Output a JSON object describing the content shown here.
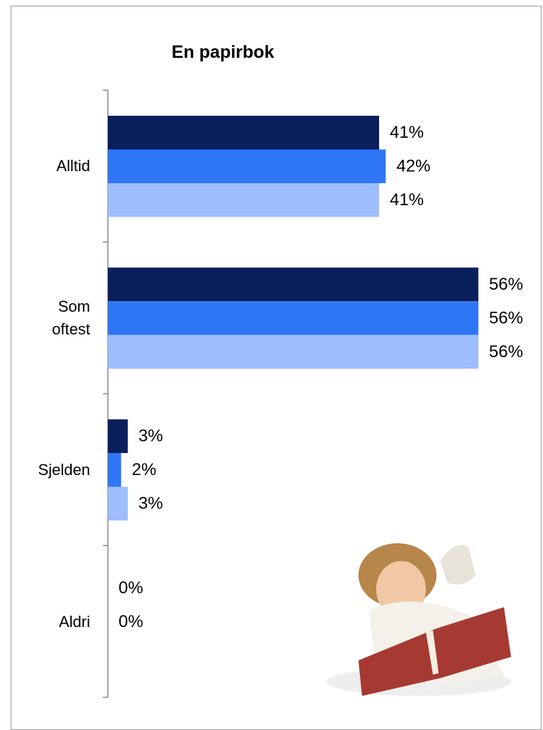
{
  "chart_data": {
    "type": "bar",
    "orientation": "horizontal",
    "title": "En papirbok",
    "categories": [
      "Alltid",
      "Som oftest",
      "Sjelden",
      "Aldri"
    ],
    "series": [
      {
        "color": "#0b1f5c",
        "values": [
          41,
          56,
          3,
          0
        ],
        "value_labels": [
          "41%",
          "56%",
          "3%",
          "0%"
        ]
      },
      {
        "color": "#2f76f6",
        "values": [
          42,
          56,
          2,
          0
        ],
        "value_labels": [
          "42%",
          "56%",
          "2%",
          "0%"
        ]
      },
      {
        "color": "#9dbdfc",
        "values": [
          41,
          56,
          3,
          null
        ],
        "value_labels": [
          "41%",
          "56%",
          "3%",
          null
        ]
      }
    ]
  }
}
